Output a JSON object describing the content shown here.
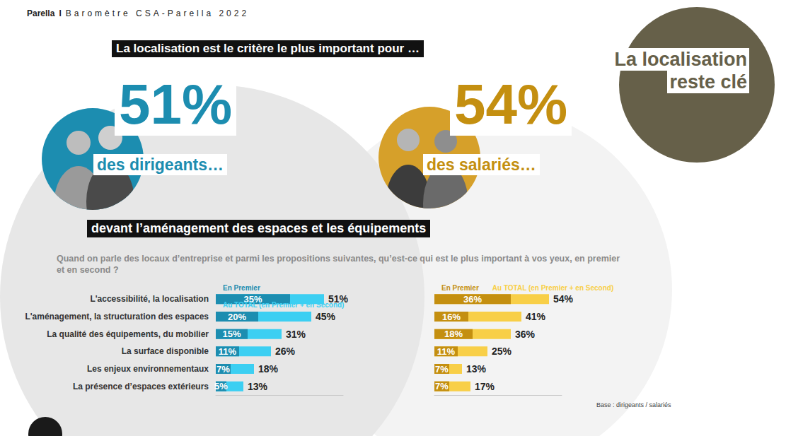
{
  "header": {
    "brand": "Parella",
    "separator": "I",
    "title": "Baromètre CSA-Parella 2022"
  },
  "headline": "La localisation est le critère le plus important pour …",
  "badge": [
    "La localisation",
    "reste clé"
  ],
  "highlights": [
    {
      "stat": "51%",
      "text": "des dirigeants…"
    },
    {
      "stat": "54%",
      "text": "des salariés…"
    }
  ],
  "subheadline": "devant l’aménagement des espaces et les équipements",
  "question": "Quand on parle des locaux d’entreprise et parmi les propositions suivantes, qu’est-ce qui est le plus important à vos yeux, en premier et  en second ?",
  "note": "Base : dirigeants / salariés",
  "chart_data": [
    {
      "type": "bar",
      "orientation": "horizontal",
      "stacked": false,
      "data_labels": true,
      "legend": "top",
      "tick_labels": "y",
      "grid": false,
      "categories": [
        "L'accessibilité, la localisation",
        "L'aménagement, la structuration des espaces",
        "La qualité des équipements, du mobilier",
        "La surface disponible",
        "Les enjeux environnementaux",
        "La présence d’espaces extérieurs"
      ],
      "xlim": [
        0,
        60
      ],
      "series": [
        {
          "name": "En Premier",
          "color": "#1c8db0",
          "values": [
            35,
            20,
            15,
            11,
            7,
            5
          ],
          "value_labels": [
            "35%",
            "20%",
            "15%",
            "11%",
            "7%",
            "5%"
          ]
        },
        {
          "name": "Au TOTAL (en Premier + en Second)",
          "color": "#3ccff2",
          "values": [
            51,
            45,
            31,
            26,
            18,
            13
          ],
          "value_labels": [
            "51%",
            "45%",
            "31%",
            "26%",
            "18%",
            "13%"
          ]
        }
      ]
    },
    {
      "type": "bar",
      "orientation": "horizontal",
      "stacked": false,
      "data_labels": true,
      "legend": "top",
      "tick_labels": false,
      "grid": false,
      "categories": [
        "L'accessibilité, la localisation",
        "L'aménagement, la structuration des espaces",
        "La qualité des équipements, du mobilier",
        "La surface disponible",
        "Les enjeux environnementaux",
        "La présence d’espaces extérieurs"
      ],
      "xlim": [
        0,
        60
      ],
      "series": [
        {
          "name": "En Premier",
          "color": "#c48f10",
          "values": [
            36,
            16,
            18,
            11,
            7,
            7
          ],
          "value_labels": [
            "36%",
            "16%",
            "18%",
            "11%",
            "7%",
            "7%"
          ]
        },
        {
          "name": "Au TOTAL (en Premier + en Second)",
          "color": "#f8cf48",
          "values": [
            54,
            41,
            36,
            25,
            13,
            17
          ],
          "value_labels": [
            "54%",
            "41%",
            "36%",
            "25%",
            "13%",
            "17%"
          ]
        }
      ]
    }
  ]
}
